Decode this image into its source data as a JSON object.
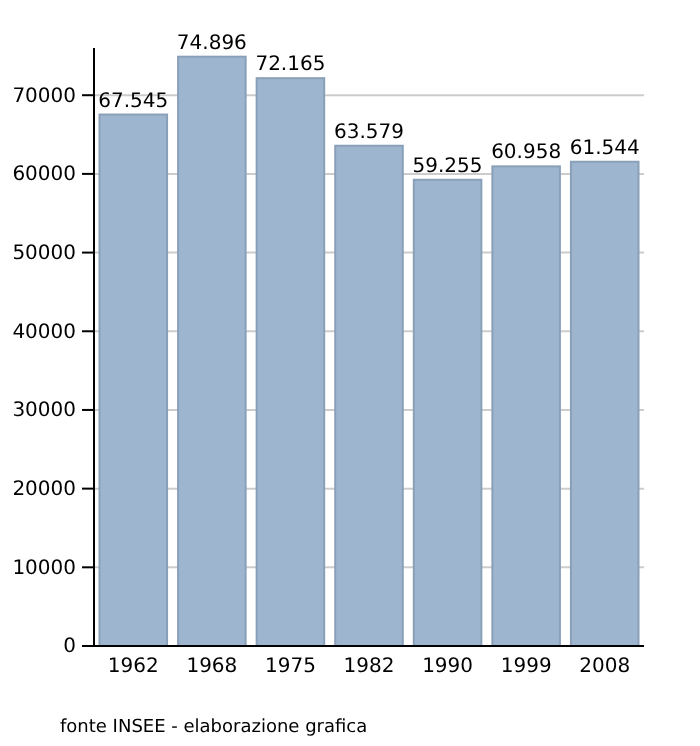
{
  "chart_data": {
    "type": "bar",
    "categories": [
      "1962",
      "1968",
      "1975",
      "1982",
      "1990",
      "1999",
      "2008"
    ],
    "values": [
      67545,
      74896,
      72165,
      63579,
      59255,
      60958,
      61544
    ],
    "value_labels": [
      "67.545",
      "74.896",
      "72.165",
      "63.579",
      "59.255",
      "60.958",
      "61.544"
    ],
    "color": "#9db5ce",
    "ylim": [
      0,
      76000
    ],
    "yticks": [
      0,
      10000,
      20000,
      30000,
      40000,
      50000,
      60000,
      70000
    ],
    "grid": "y",
    "annotations": [
      "fonte INSEE - elaborazione grafica"
    ]
  }
}
